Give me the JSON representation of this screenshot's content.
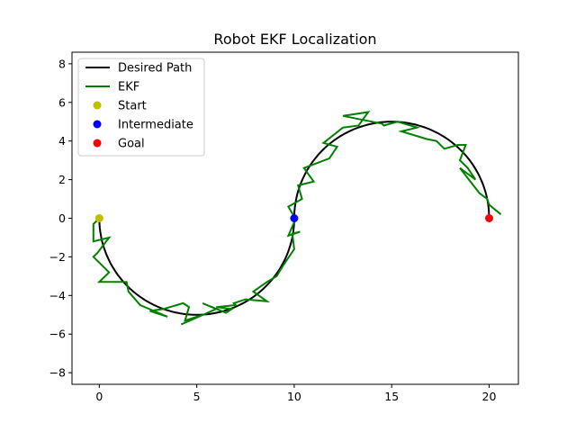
{
  "chart_data": {
    "type": "line",
    "title": "Robot EKF Localization",
    "xlabel": "",
    "ylabel": "",
    "xlim": [
      -1.4,
      21.5
    ],
    "ylim": [
      -8.6,
      8.6
    ],
    "xticks": [
      0,
      5,
      10,
      15,
      20
    ],
    "yticks": [
      -8,
      -6,
      -4,
      -2,
      0,
      2,
      4,
      6,
      8
    ],
    "grid": false,
    "legend_position": "upper-left",
    "series": [
      {
        "name": "Desired Path",
        "kind": "line",
        "color": "#000000",
        "curve": "two semicircles of radius 5 centered at (5,0) below and (15,0) above"
      },
      {
        "name": "EKF",
        "kind": "line",
        "color": "#008000",
        "x": [
          0.0,
          -0.3,
          -0.3,
          0.5,
          -0.1,
          -0.3,
          0.5,
          0.0,
          1.4,
          1.5,
          2.1,
          2.8,
          3.5,
          2.6,
          3.3,
          4.3,
          4.6,
          4.4,
          5.3,
          4.2,
          6.0,
          5.3,
          6.5,
          6.8,
          6.0,
          7.0,
          6.9,
          7.5,
          8.6,
          7.9,
          8.6,
          9.1,
          9.4,
          10.0,
          9.9,
          10.3,
          9.7,
          10.0,
          10.1,
          9.7,
          10.4,
          10.2,
          11.0,
          10.5,
          11.8,
          12.2,
          11.5,
          12.5,
          13.3,
          13.8,
          12.5,
          14.5,
          14.6,
          15.3,
          16.3,
          15.5,
          16.8,
          17.3,
          17.7,
          18.4,
          18.8,
          18.5,
          18.9,
          19.3,
          18.5,
          19.5,
          19.9,
          20.0,
          20.6
        ],
        "y": [
          0.0,
          -0.3,
          -1.2,
          -1.0,
          -1.8,
          -2.0,
          -2.8,
          -3.3,
          -3.3,
          -3.8,
          -4.5,
          -4.8,
          -5.1,
          -4.8,
          -4.7,
          -4.4,
          -4.6,
          -5.3,
          -5.0,
          -5.5,
          -4.7,
          -4.4,
          -4.9,
          -4.7,
          -4.6,
          -4.5,
          -4.4,
          -4.2,
          -4.3,
          -3.8,
          -3.3,
          -3.0,
          -2.5,
          -1.6,
          -0.8,
          -0.7,
          -0.9,
          -0.2,
          -0.1,
          0.6,
          1.0,
          1.7,
          1.9,
          2.6,
          3.1,
          3.7,
          3.9,
          4.7,
          4.8,
          5.5,
          5.3,
          4.9,
          4.8,
          5.0,
          4.7,
          4.5,
          4.1,
          4.0,
          3.6,
          3.8,
          3.8,
          3.0,
          2.6,
          2.0,
          2.6,
          1.3,
          1.0,
          0.7,
          0.2
        ]
      },
      {
        "name": "Start",
        "kind": "point",
        "color": "#bfbf00",
        "x": [
          0.0
        ],
        "y": [
          0.0
        ]
      },
      {
        "name": "Intermediate",
        "kind": "point",
        "color": "#0000ff",
        "x": [
          10.0
        ],
        "y": [
          0.0
        ]
      },
      {
        "name": "Goal",
        "kind": "point",
        "color": "#ff0000",
        "x": [
          20.0
        ],
        "y": [
          0.0
        ]
      }
    ]
  }
}
